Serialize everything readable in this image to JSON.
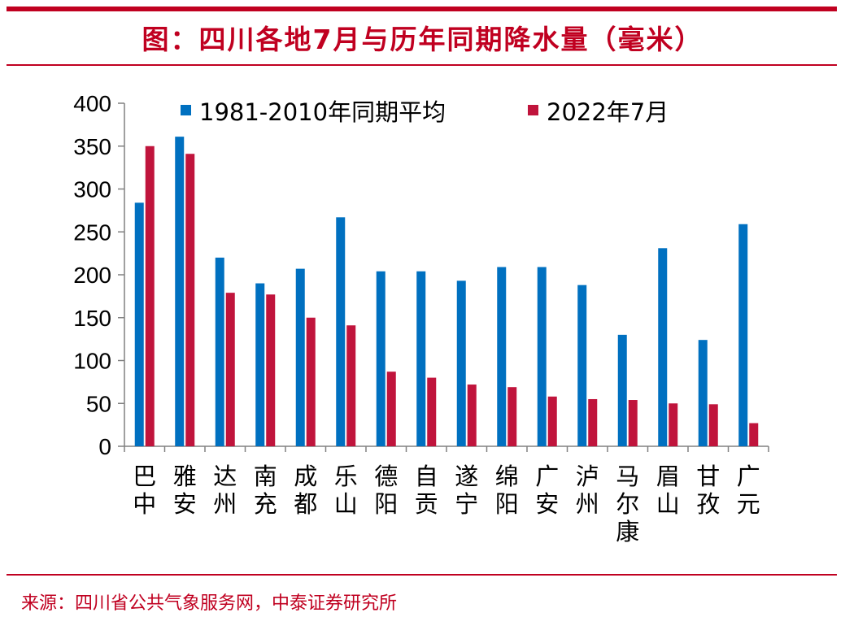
{
  "title": "图：四川各地7月与历年同期降水量（毫米）",
  "source": "来源：四川省公共气象服务网，中泰证券研究所",
  "colors": {
    "accent": "#C00020",
    "series1": "#0070C0",
    "series2": "#C0143C",
    "axis": "#808080",
    "text": "#000000"
  },
  "chart_data": {
    "type": "bar",
    "categories": [
      "巴中",
      "雅安",
      "达州",
      "南充",
      "成都",
      "乐山",
      "德阳",
      "自贡",
      "遂宁",
      "绵阳",
      "广安",
      "泸州",
      "马尔康",
      "眉山",
      "甘孜",
      "广元"
    ],
    "series": [
      {
        "name": "1981-2010年同期平均",
        "values": [
          284,
          361,
          220,
          190,
          207,
          267,
          204,
          204,
          193,
          209,
          209,
          188,
          130,
          231,
          124,
          259
        ]
      },
      {
        "name": "2022年7月",
        "values": [
          350,
          341,
          179,
          177,
          150,
          141,
          87,
          80,
          72,
          69,
          58,
          55,
          54,
          50,
          49,
          27
        ]
      }
    ],
    "ylim": [
      0,
      400
    ],
    "yticks": [
      0,
      50,
      100,
      150,
      200,
      250,
      300,
      350,
      400
    ],
    "xlabel": "",
    "ylabel": "",
    "grid": false,
    "legend": "top"
  }
}
